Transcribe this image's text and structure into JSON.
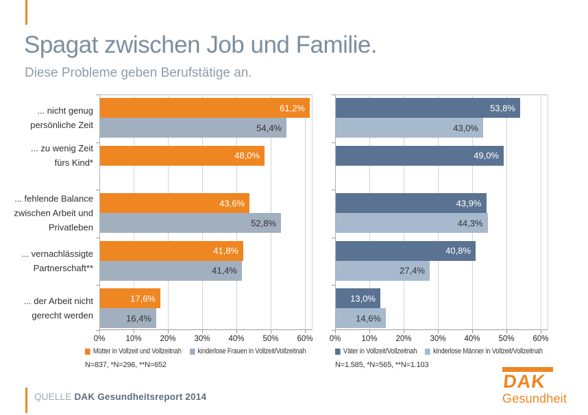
{
  "header": {
    "title": "Spagat zwischen Job und Familie.",
    "subtitle": "Diese Probleme geben Berufstätige an."
  },
  "colors": {
    "accent_orange": "#EE8622",
    "women_primary": "#EE8622",
    "women_secondary": "#A2AFBF",
    "men_primary": "#5B7392",
    "men_secondary": "#A7B9CC"
  },
  "chart_data": [
    {
      "type": "bar",
      "orientation": "horizontal",
      "show_category_labels": true,
      "categories": [
        "... nicht genug persönliche Zeit",
        "... zu wenig Zeit fürs Kind*",
        "... fehlende Balance zwischen Arbeit und Privatleben",
        "... vernachlässigte Partnerschaft**",
        "... der Arbeit nicht gerecht werden"
      ],
      "category_lines": [
        [
          "... nicht genug",
          "persönliche Zeit"
        ],
        [
          "... zu wenig Zeit",
          "fürs Kind*"
        ],
        [
          "... fehlende Balance",
          "zwischen Arbeit und",
          "Privatleben"
        ],
        [
          "... vernachlässigte",
          "Partnerschaft**"
        ],
        [
          "... der Arbeit nicht",
          "gerecht werden"
        ]
      ],
      "series": [
        {
          "name": "Mütter in Vollzeit und Vollzeitnah",
          "color": "#EE8622",
          "label_color": "#FFFFFF",
          "values": [
            61.2,
            48.0,
            43.6,
            41.8,
            17.6
          ],
          "labels": [
            "61,2%",
            "48,0%",
            "43,6%",
            "41,8%",
            "17,6%"
          ]
        },
        {
          "name": "kinderlose Frauen in Vollzeit/Vollzeitnah",
          "color": "#A2AFBF",
          "label_color": "#333333",
          "values": [
            54.4,
            null,
            52.8,
            41.4,
            16.4
          ],
          "labels": [
            "54,4%",
            null,
            "52,8%",
            "41,4%",
            "16,4%"
          ]
        }
      ],
      "xlim": [
        0,
        62
      ],
      "ticks": [
        "0%",
        "10%",
        "20%",
        "30%",
        "40%",
        "50%",
        "60%"
      ],
      "grid": true,
      "legend_position": "bottom",
      "footnote": "N=837, *N=296, **N=652"
    },
    {
      "type": "bar",
      "orientation": "horizontal",
      "show_category_labels": false,
      "categories": [
        "... nicht genug persönliche Zeit",
        "... zu wenig Zeit fürs Kind*",
        "... fehlende Balance zwischen Arbeit und Privatleben",
        "... vernachlässigte Partnerschaft**",
        "... der Arbeit nicht gerecht werden"
      ],
      "series": [
        {
          "name": "Väter in Vollzeit/Vollzeitnah",
          "color": "#5B7392",
          "label_color": "#FFFFFF",
          "values": [
            53.8,
            49.0,
            43.9,
            40.8,
            13.0
          ],
          "labels": [
            "53,8%",
            "49,0%",
            "43,9%",
            "40,8%",
            "13,0%"
          ]
        },
        {
          "name": "kinderlose Männer in Vollzeit/Vollzeitnah",
          "color": "#A7B9CC",
          "label_color": "#333333",
          "values": [
            43.0,
            null,
            44.3,
            27.4,
            14.6
          ],
          "labels": [
            "43,0%",
            null,
            "44,3%",
            "27,4%",
            "14,6%"
          ]
        }
      ],
      "xlim": [
        0,
        62
      ],
      "ticks": [
        "0%",
        "10%",
        "20%",
        "30%",
        "40%",
        "50%",
        "60%"
      ],
      "grid": true,
      "legend_position": "bottom",
      "footnote": "N=1.585, *N=565, **N=1.103"
    }
  ],
  "footer": {
    "source_label": "QUELLE",
    "source_text": "DAK Gesundheitsreport 2014",
    "logo": {
      "text": "DAK",
      "subtext": "Gesundheit"
    }
  }
}
